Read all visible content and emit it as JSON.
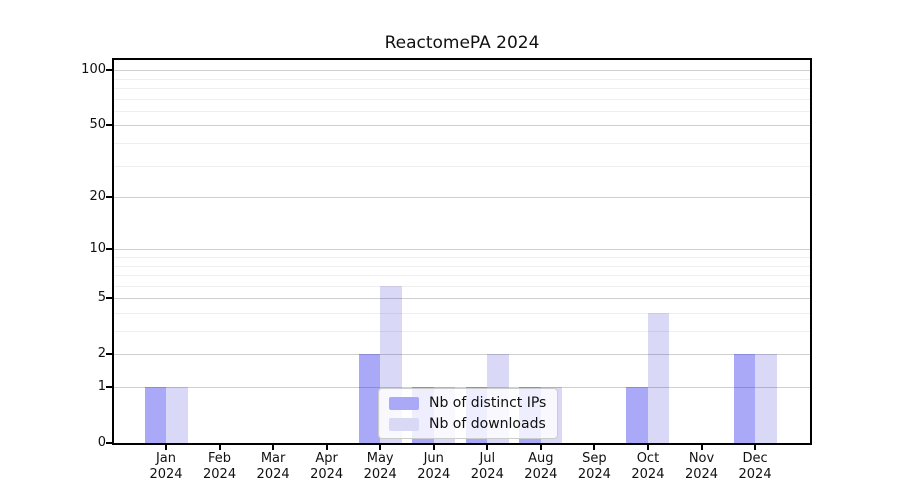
{
  "chart_data": {
    "type": "bar",
    "title": "ReactomePA 2024",
    "months": [
      "Jan",
      "Feb",
      "Mar",
      "Apr",
      "May",
      "Jun",
      "Jul",
      "Aug",
      "Sep",
      "Oct",
      "Nov",
      "Dec"
    ],
    "year": "2024",
    "categories": [
      "Jan 2024",
      "Feb 2024",
      "Mar 2024",
      "Apr 2024",
      "May 2024",
      "Jun 2024",
      "Jul 2024",
      "Aug 2024",
      "Sep 2024",
      "Oct 2024",
      "Nov 2024",
      "Dec 2024"
    ],
    "series": [
      {
        "name": "Nb of distinct IPs",
        "fill": "rgba(9,9,235,0.35)",
        "apparent_color": "#a9a9f8",
        "values": [
          1,
          0,
          0,
          0,
          2,
          1,
          1,
          1,
          0,
          1,
          0,
          2
        ]
      },
      {
        "name": "Nb of downloads",
        "fill": "rgba(18,18,205,0.16)",
        "apparent_color": "#d9d9f6",
        "values": [
          1,
          0,
          0,
          0,
          6,
          1,
          2,
          1,
          0,
          4,
          0,
          2
        ]
      }
    ],
    "yscale": "log1p",
    "ylim": [
      0,
      110
    ],
    "yticks": [
      100,
      50,
      20,
      10,
      5,
      2,
      1,
      0
    ],
    "minor_gridlines": [
      3,
      4,
      6,
      7,
      8,
      9,
      30,
      40,
      60,
      70,
      80,
      90
    ],
    "grid": true,
    "grid_major_color": "#cfcfcf",
    "grid_minor_color": "#efefef",
    "legend_position": "lower center"
  }
}
